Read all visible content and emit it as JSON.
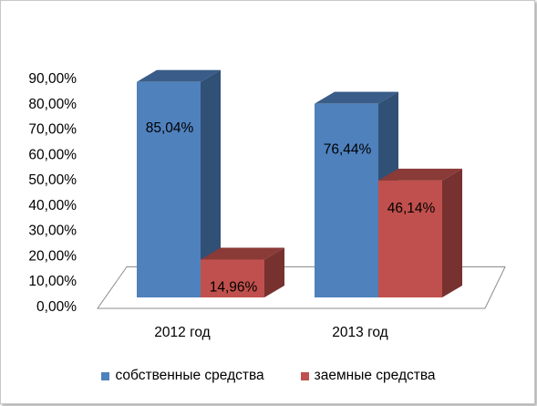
{
  "chart_data": {
    "type": "bar",
    "style": "3d-clustered-column",
    "categories": [
      "2012 год",
      "2013 год"
    ],
    "series": [
      {
        "name": "собственные средства",
        "values": [
          85.04,
          76.44
        ],
        "labels": [
          "85,04%",
          "76,44%"
        ],
        "color": "#4F81BD"
      },
      {
        "name": "заемные средства",
        "values": [
          14.96,
          46.14
        ],
        "labels": [
          "14,96%",
          "46,14%"
        ],
        "color": "#C0504D"
      }
    ],
    "yticks": [
      "0,00%",
      "10,00%",
      "20,00%",
      "30,00%",
      "40,00%",
      "50,00%",
      "60,00%",
      "70,00%",
      "80,00%",
      "90,00%"
    ],
    "ylim": [
      0,
      90
    ],
    "grid": false,
    "legend_position": "bottom"
  }
}
